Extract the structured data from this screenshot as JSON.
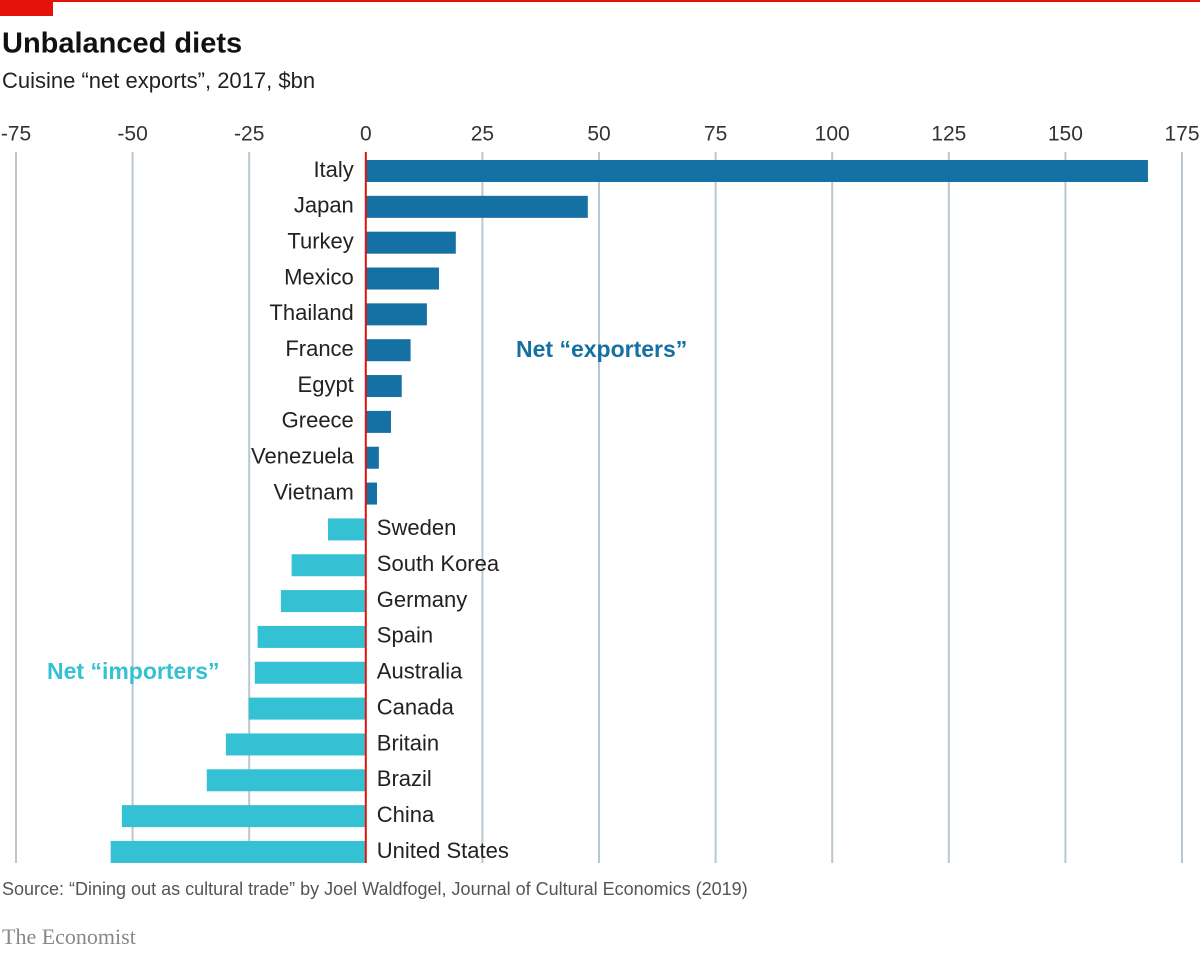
{
  "chart_data": {
    "type": "bar",
    "orientation": "horizontal",
    "title": "Unbalanced diets",
    "subtitle": "Cuisine “net exports”, 2017, $bn",
    "source": "Source: “Dining out as cultural trade” by Joel Waldfogel, Journal of Cultural Economics (2019)",
    "brand": "The Economist",
    "categories": [
      "Italy",
      "Japan",
      "Turkey",
      "Mexico",
      "Thailand",
      "France",
      "Egypt",
      "Greece",
      "Venezuela",
      "Vietnam",
      "Sweden",
      "South Korea",
      "Germany",
      "Spain",
      "Australia",
      "Canada",
      "Britain",
      "Brazil",
      "China",
      "United States"
    ],
    "series": [
      {
        "name": "Net “exporters”",
        "color": "#1570a3",
        "values": [
          167.7,
          47.6,
          19.3,
          15.7,
          13.1,
          9.6,
          7.7,
          5.4,
          2.8,
          2.4,
          null,
          null,
          null,
          null,
          null,
          null,
          null,
          null,
          null,
          null
        ]
      },
      {
        "name": "Net “importers”",
        "color": "#35c1d4",
        "values": [
          null,
          null,
          null,
          null,
          null,
          null,
          null,
          null,
          null,
          null,
          -8.1,
          -15.9,
          -18.2,
          -23.2,
          -23.8,
          -25.1,
          -30.0,
          -34.1,
          -52.3,
          -54.7
        ]
      }
    ],
    "xlim": [
      -75,
      175
    ],
    "xticks": [
      -75,
      -50,
      -25,
      0,
      25,
      50,
      75,
      100,
      125,
      150,
      175
    ],
    "grid": true
  }
}
